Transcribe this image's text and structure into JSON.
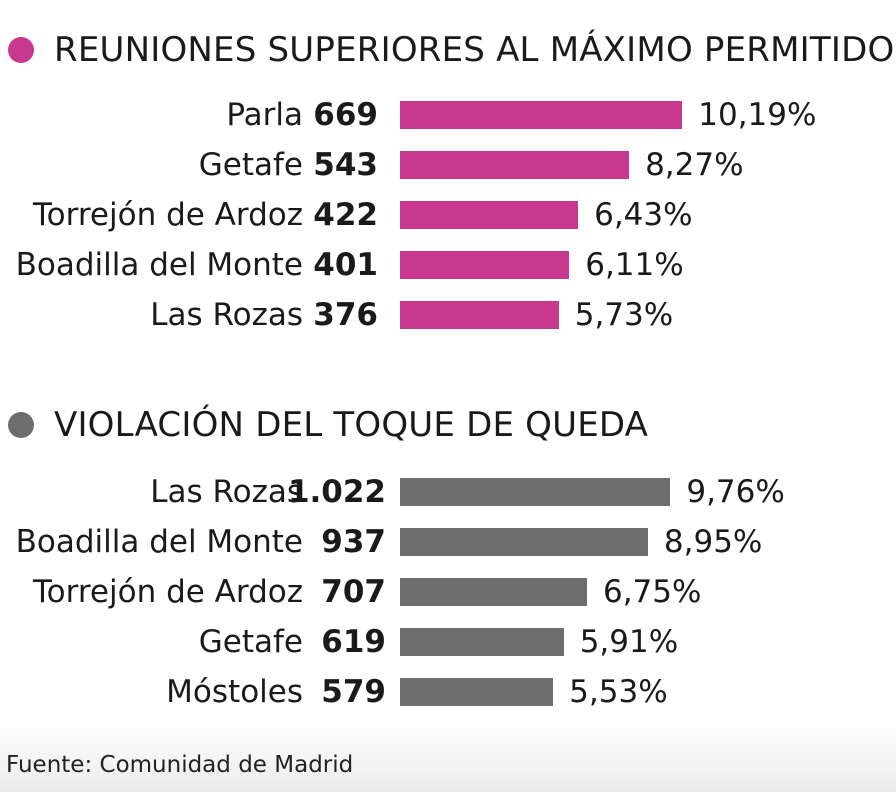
{
  "chart_data": [
    {
      "type": "bar",
      "orientation": "horizontal",
      "title": "REUNIONES SUPERIORES AL MÁXIMO PERMITIDO",
      "color": "#c8388f",
      "categories": [
        "Parla",
        "Getafe",
        "Torrejón de Ardoz",
        "Boadilla del Monte",
        "Las Rozas"
      ],
      "counts": [
        "669",
        "543",
        "422",
        "401",
        "376"
      ],
      "values": [
        10.19,
        8.27,
        6.43,
        6.11,
        5.73
      ],
      "value_labels": [
        "10,19%",
        "8,27%",
        "6,43%",
        "6,11%",
        "5,73%"
      ]
    },
    {
      "type": "bar",
      "orientation": "horizontal",
      "title": "VIOLACIÓN DEL TOQUE DE QUEDA",
      "color": "#6d6d6d",
      "categories": [
        "Las Rozas",
        "Boadilla del Monte",
        "Torrejón de Ardoz",
        "Getafe",
        "Móstoles"
      ],
      "counts": [
        "1.022",
        "937",
        "707",
        "619",
        "579"
      ],
      "values": [
        9.76,
        8.95,
        6.75,
        5.91,
        5.53
      ],
      "value_labels": [
        "9,76%",
        "8,95%",
        "6,75%",
        "5,91%",
        "5,53%"
      ]
    }
  ],
  "source": "Fuente: Comunidad de Madrid"
}
